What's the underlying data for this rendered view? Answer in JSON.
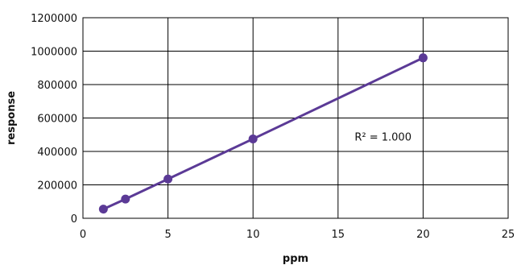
{
  "chart_data": {
    "type": "line",
    "title": "",
    "xlabel": "ppm",
    "ylabel": "response",
    "xlim": [
      0,
      25
    ],
    "ylim": [
      0,
      1200000
    ],
    "x_ticks": [
      0,
      5,
      10,
      15,
      20,
      25
    ],
    "y_ticks": [
      0,
      200000,
      400000,
      600000,
      800000,
      1000000,
      1200000
    ],
    "x_tick_labels": [
      "0",
      "5",
      "10",
      "15",
      "20",
      "25"
    ],
    "y_tick_labels": [
      "0",
      "200000",
      "400000",
      "600000",
      "800000",
      "1000000",
      "1200000"
    ],
    "grid": true,
    "legend": "none",
    "series": [
      {
        "color": "#5b3a96",
        "points": [
          {
            "x": 1.2,
            "y": 55000
          },
          {
            "x": 2.5,
            "y": 115000
          },
          {
            "x": 5,
            "y": 235000
          },
          {
            "x": 10,
            "y": 475000
          },
          {
            "x": 20,
            "y": 960000
          }
        ]
      }
    ],
    "annotations": [
      {
        "text": "R² = 1.000",
        "x": 15.5,
        "y": 490000
      }
    ]
  }
}
